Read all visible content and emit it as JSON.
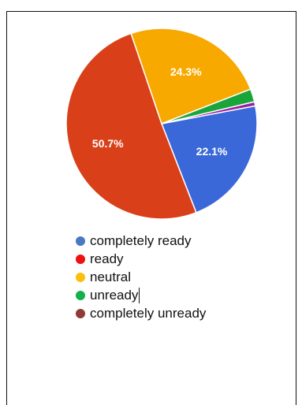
{
  "chart_data": {
    "type": "pie",
    "series": [
      {
        "name": "completely ready",
        "value": 22.1,
        "color": "#3b68d8",
        "label": "22.1%"
      },
      {
        "name": "ready",
        "value": 50.7,
        "color": "#d9401a",
        "label": "50.7%"
      },
      {
        "name": "neutral",
        "value": 24.3,
        "color": "#f7a900",
        "label": "24.3%"
      },
      {
        "name": "unready",
        "value": 2.2,
        "color": "#1aa53a",
        "label": ""
      },
      {
        "name": "completely unready",
        "value": 0.7,
        "color": "#9b1fa3",
        "label": ""
      }
    ],
    "legend": {
      "placement": "bottom",
      "items": [
        {
          "name": "completely ready",
          "color": "#4a78c2"
        },
        {
          "name": "ready",
          "color": "#ee1111"
        },
        {
          "name": "neutral",
          "color": "#fbbf0c"
        },
        {
          "name": "unready",
          "color": "#14b04c"
        },
        {
          "name": "completely unready",
          "color": "#8f3a36"
        }
      ]
    }
  }
}
